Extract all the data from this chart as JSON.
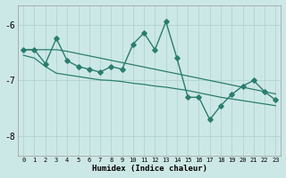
{
  "x": [
    0,
    1,
    2,
    3,
    4,
    5,
    6,
    7,
    8,
    9,
    10,
    11,
    12,
    13,
    14,
    15,
    16,
    17,
    18,
    19,
    20,
    21,
    22,
    23
  ],
  "y_main": [
    -6.45,
    -6.45,
    -6.7,
    -6.25,
    -6.65,
    -6.75,
    -6.8,
    -6.85,
    -6.75,
    -6.8,
    -6.35,
    -6.15,
    -6.45,
    -5.95,
    -6.6,
    -7.3,
    -7.3,
    -7.7,
    -7.45,
    -7.25,
    -7.1,
    -7.0,
    -7.2,
    -7.35
  ],
  "y_smooth1": [
    -6.45,
    -6.45,
    -6.45,
    -6.45,
    -6.48,
    -6.52,
    -6.56,
    -6.6,
    -6.64,
    -6.68,
    -6.72,
    -6.76,
    -6.8,
    -6.84,
    -6.88,
    -6.92,
    -6.96,
    -7.0,
    -7.04,
    -7.08,
    -7.12,
    -7.16,
    -7.2,
    -7.24
  ],
  "y_smooth2": [
    -6.55,
    -6.6,
    -6.75,
    -6.87,
    -6.9,
    -6.93,
    -6.96,
    -6.99,
    -7.0,
    -7.02,
    -7.05,
    -7.07,
    -7.1,
    -7.12,
    -7.15,
    -7.18,
    -7.22,
    -7.26,
    -7.3,
    -7.33,
    -7.36,
    -7.39,
    -7.42,
    -7.45
  ],
  "line_color": "#2a7d6e",
  "bg_color": "#cce8e6",
  "grid_color": "#aacfcd",
  "xlabel": "Humidex (Indice chaleur)",
  "ylim": [
    -8.35,
    -5.65
  ],
  "xlim": [
    -0.5,
    23.5
  ],
  "yticks": [
    -8,
    -7,
    -6
  ],
  "xticks": [
    0,
    1,
    2,
    3,
    4,
    5,
    6,
    7,
    8,
    9,
    10,
    11,
    12,
    13,
    14,
    15,
    16,
    17,
    18,
    19,
    20,
    21,
    22,
    23
  ],
  "markersize": 2.8,
  "linewidth": 1.0,
  "lw_smooth": 0.9
}
